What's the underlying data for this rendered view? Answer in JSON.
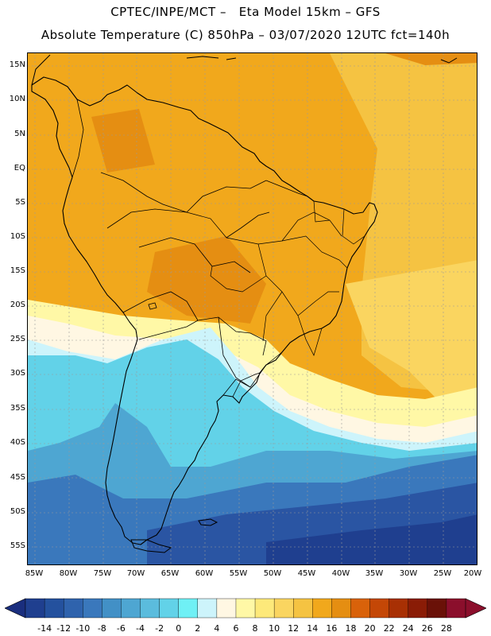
{
  "header": {
    "line1": "CPTEC/INPE/MCT –   Eta Model 15km – GFS",
    "line2": "Absolute Temperature (C) 850hPa – 03/07/2020 12UTC fct=140h"
  },
  "axes": {
    "lat_labels": [
      "15N",
      "10N",
      "5N",
      "EQ",
      "5S",
      "10S",
      "15S",
      "20S",
      "25S",
      "30S",
      "35S",
      "40S",
      "45S",
      "50S",
      "55S"
    ],
    "lon_labels": [
      "85W",
      "80W",
      "75W",
      "70W",
      "65W",
      "60W",
      "55W",
      "50W",
      "45W",
      "40W",
      "35W",
      "30W",
      "25W",
      "20W"
    ]
  },
  "colorbar": {
    "labels": [
      "-14",
      "-12",
      "-10",
      "-8",
      "-6",
      "-4",
      "-2",
      "0",
      "2",
      "4",
      "6",
      "8",
      "10",
      "12",
      "14",
      "16",
      "18",
      "20",
      "22",
      "24",
      "26",
      "28"
    ],
    "colors": [
      "#1f3f8f",
      "#24519e",
      "#2f63ad",
      "#3a78bc",
      "#4290c6",
      "#4ea6d2",
      "#5bbcdd",
      "#62d2e8",
      "#6ff0f5",
      "#cdf4fb",
      "#fff7e3",
      "#fff8a6",
      "#fde97a",
      "#fad560",
      "#f5c342",
      "#f1a81c",
      "#e58e12",
      "#d9620a",
      "#c44706",
      "#a83004",
      "#8a1c06",
      "#6a1108",
      "#8b0f2c"
    ],
    "under_color": "#1a2e7e",
    "over_color": "#8b0f2c"
  },
  "field_colors": {
    "warm_orange": "#f1a81c",
    "hot_orange": "#e58e12",
    "yellow": "#fbd866",
    "cream": "#fff7e3",
    "pale_cyan": "#cdf4fb",
    "cyan": "#62d2e8",
    "light_blue": "#4ea6d2",
    "mid_blue": "#3a78bc",
    "deep_blue": "#2a55a3",
    "dark_blue": "#1f3f8f"
  }
}
